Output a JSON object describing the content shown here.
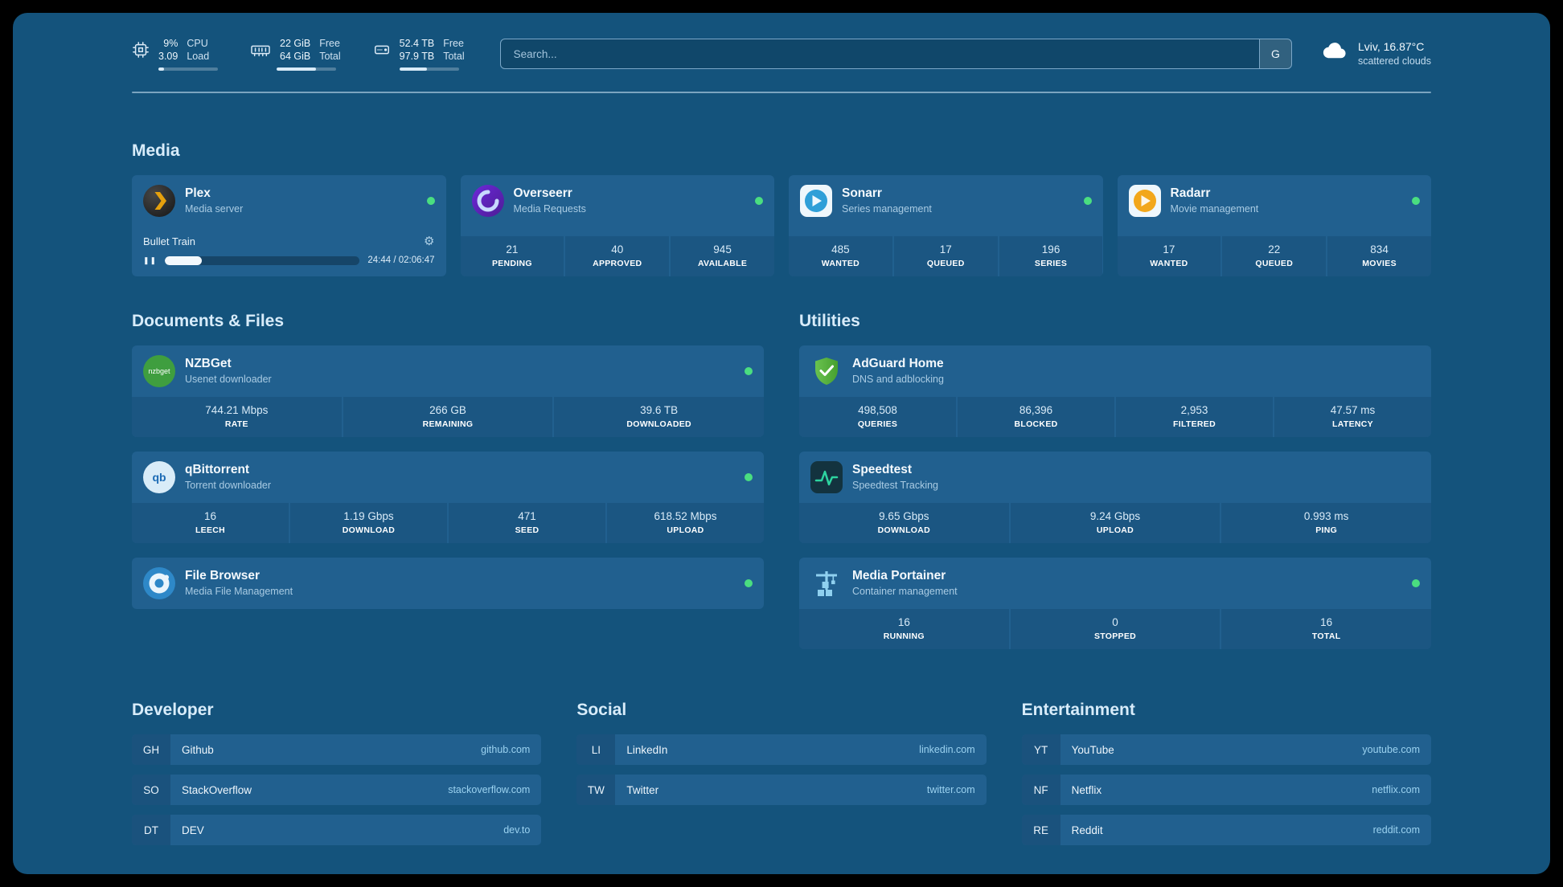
{
  "topbar": {
    "cpu": {
      "values": [
        "9%",
        "3.09"
      ],
      "labels": [
        "CPU",
        "Load"
      ],
      "progress": 9
    },
    "ram": {
      "values": [
        "22 GiB",
        "64 GiB"
      ],
      "labels": [
        "Free",
        "Total"
      ],
      "progress": 66
    },
    "disk": {
      "values": [
        "52.4 TB",
        "97.9 TB"
      ],
      "labels": [
        "Free",
        "Total"
      ],
      "progress": 47
    },
    "search": {
      "placeholder": "Search...",
      "provider": "G"
    },
    "weather": {
      "location": "Lviv, 16.87°C",
      "condition": "scattered clouds"
    }
  },
  "sections": {
    "media": {
      "title": "Media"
    },
    "documents": {
      "title": "Documents & Files"
    },
    "utilities": {
      "title": "Utilities"
    },
    "developer": {
      "title": "Developer"
    },
    "social": {
      "title": "Social"
    },
    "entertainment": {
      "title": "Entertainment"
    }
  },
  "icons": {
    "pause": "❚❚",
    "settings": "⚙"
  },
  "services": {
    "plex": {
      "name": "Plex",
      "subtitle": "Media server",
      "now_playing": "Bullet Train",
      "time": "24:44 / 02:06:47",
      "progress": 19
    },
    "overseerr": {
      "name": "Overseerr",
      "subtitle": "Media Requests",
      "stats": [
        {
          "value": "21",
          "label": "PENDING"
        },
        {
          "value": "40",
          "label": "APPROVED"
        },
        {
          "value": "945",
          "label": "AVAILABLE"
        }
      ]
    },
    "sonarr": {
      "name": "Sonarr",
      "subtitle": "Series management",
      "stats": [
        {
          "value": "485",
          "label": "WANTED"
        },
        {
          "value": "17",
          "label": "QUEUED"
        },
        {
          "value": "196",
          "label": "SERIES"
        }
      ]
    },
    "radarr": {
      "name": "Radarr",
      "subtitle": "Movie management",
      "stats": [
        {
          "value": "17",
          "label": "WANTED"
        },
        {
          "value": "22",
          "label": "QUEUED"
        },
        {
          "value": "834",
          "label": "MOVIES"
        }
      ]
    },
    "nzbget": {
      "name": "NZBGet",
      "subtitle": "Usenet downloader",
      "icon_text": "nzbget",
      "stats": [
        {
          "value": "744.21 Mbps",
          "label": "RATE"
        },
        {
          "value": "266 GB",
          "label": "REMAINING"
        },
        {
          "value": "39.6 TB",
          "label": "DOWNLOADED"
        }
      ]
    },
    "qbittorrent": {
      "name": "qBittorrent",
      "subtitle": "Torrent downloader",
      "icon_text": "qb",
      "stats": [
        {
          "value": "16",
          "label": "LEECH"
        },
        {
          "value": "1.19 Gbps",
          "label": "DOWNLOAD"
        },
        {
          "value": "471",
          "label": "SEED"
        },
        {
          "value": "618.52 Mbps",
          "label": "UPLOAD"
        }
      ]
    },
    "filebrowser": {
      "name": "File Browser",
      "subtitle": "Media File Management"
    },
    "adguard": {
      "name": "AdGuard Home",
      "subtitle": "DNS and adblocking",
      "stats": [
        {
          "value": "498,508",
          "label": "QUERIES"
        },
        {
          "value": "86,396",
          "label": "BLOCKED"
        },
        {
          "value": "2,953",
          "label": "FILTERED"
        },
        {
          "value": "47.57 ms",
          "label": "LATENCY"
        }
      ]
    },
    "speedtest": {
      "name": "Speedtest",
      "subtitle": "Speedtest Tracking",
      "stats": [
        {
          "value": "9.65 Gbps",
          "label": "DOWNLOAD"
        },
        {
          "value": "9.24 Gbps",
          "label": "UPLOAD"
        },
        {
          "value": "0.993 ms",
          "label": "PING"
        }
      ]
    },
    "portainer": {
      "name": "Media Portainer",
      "subtitle": "Container management",
      "stats": [
        {
          "value": "16",
          "label": "RUNNING"
        },
        {
          "value": "0",
          "label": "STOPPED"
        },
        {
          "value": "16",
          "label": "TOTAL"
        }
      ]
    }
  },
  "bookmarks": {
    "developer": [
      {
        "abbr": "GH",
        "name": "Github",
        "domain": "github.com"
      },
      {
        "abbr": "SO",
        "name": "StackOverflow",
        "domain": "stackoverflow.com"
      },
      {
        "abbr": "DT",
        "name": "DEV",
        "domain": "dev.to"
      }
    ],
    "social": [
      {
        "abbr": "LI",
        "name": "LinkedIn",
        "domain": "linkedin.com"
      },
      {
        "abbr": "TW",
        "name": "Twitter",
        "domain": "twitter.com"
      }
    ],
    "entertainment": [
      {
        "abbr": "YT",
        "name": "YouTube",
        "domain": "youtube.com"
      },
      {
        "abbr": "NF",
        "name": "Netflix",
        "domain": "netflix.com"
      },
      {
        "abbr": "RE",
        "name": "Reddit",
        "domain": "reddit.com"
      }
    ]
  },
  "colors": {
    "background": "#14537c",
    "card": "#21608f",
    "status_green": "#4ade80"
  }
}
